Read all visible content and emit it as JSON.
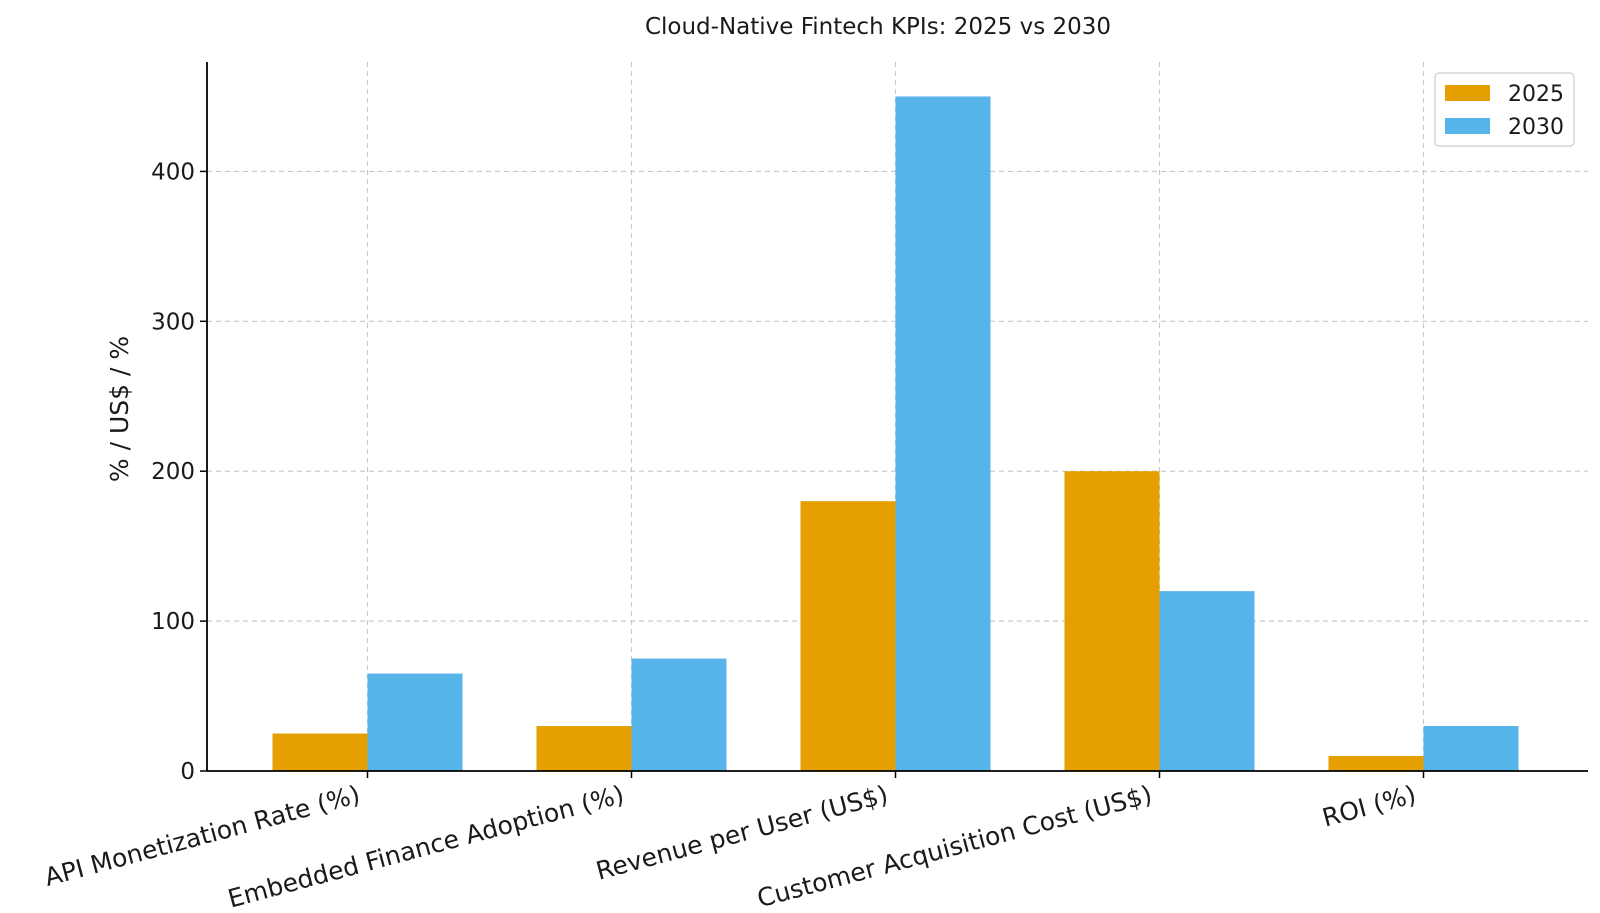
{
  "chart_data": {
    "type": "bar",
    "title": "Cloud-Native Fintech KPIs: 2025 vs 2030",
    "xlabel": "",
    "ylabel": "% / US$ / %",
    "categories": [
      "API Monetization Rate (%)",
      "Embedded Finance Adoption (%)",
      "Revenue per User (US$)",
      "Customer Acquisition Cost (US$)",
      "ROI (%)"
    ],
    "series": [
      {
        "name": "2025",
        "color": "#E69F00",
        "values": [
          25,
          30,
          180,
          200,
          10
        ]
      },
      {
        "name": "2030",
        "color": "#56B4E9",
        "values": [
          65,
          75,
          450,
          120,
          30
        ]
      }
    ],
    "ylim": [
      0,
      473
    ],
    "yticks": [
      0,
      100,
      200,
      300,
      400
    ],
    "grid": true,
    "legend_position": "top-right"
  }
}
